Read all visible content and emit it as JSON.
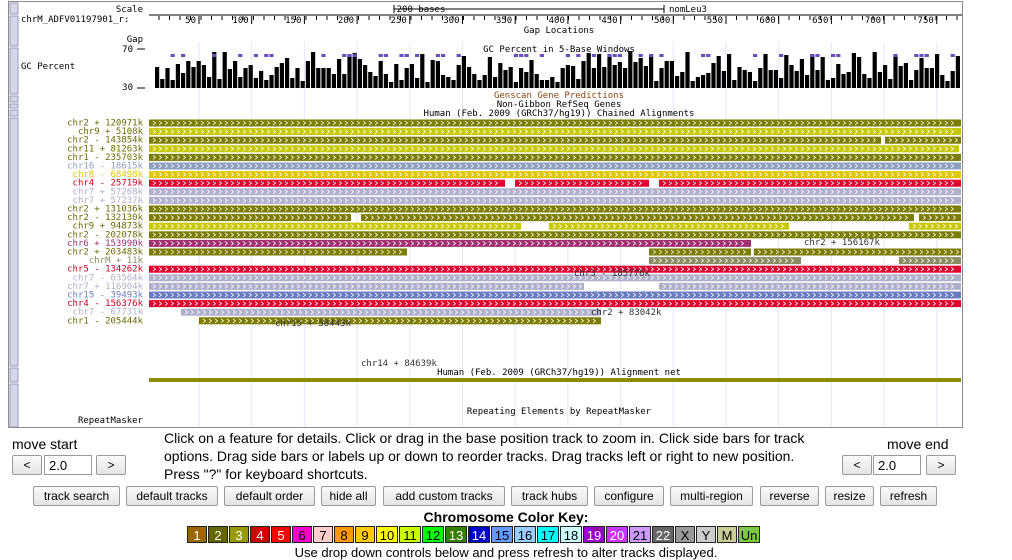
{
  "browser": {
    "scale_label": "Scale",
    "scale_text": "200 bases",
    "assembly_label": "nomLeu3",
    "position_label": "chrM_ADFV01197901_r:",
    "positions": [
      "50",
      "100",
      "150",
      "200",
      "250",
      "300",
      "350",
      "400",
      "450",
      "500",
      "550",
      "600",
      "650",
      "700",
      "750"
    ],
    "gap_label": "Gap",
    "gap_title": "Gap Locations",
    "gc_label": "GC Percent",
    "gc_title": "GC Percent in 5-Base Windows",
    "gc_max": "70",
    "gc_min": "30",
    "genscan_title": "Genscan Gene Predictions",
    "refseq_title": "Non-Gibbon RefSeq Genes",
    "chain_title": "Human (Feb. 2009 (GRCh37/hg19)) Chained Alignments",
    "net_title": "Human (Feb. 2009 (GRCh37/hg19)) Alignment net",
    "repeat_label": "RepeatMasker",
    "repeat_title": "Repeating Elements by RepeatMasker",
    "chain_rows": [
      {
        "label": "chr2 + 120971k",
        "color": "#7c7c00"
      },
      {
        "label": "chr9 + 5108k",
        "color": "#c8c800"
      },
      {
        "label": "chr2 - 143854k",
        "color": "#7c7c00"
      },
      {
        "label": "chr11 + 81263k",
        "color": "#c8c800"
      },
      {
        "label": "chr1 - 235703k",
        "color": "#7c7c00"
      },
      {
        "label": "chr16 - 18615k",
        "color": "#8ea0c0"
      },
      {
        "label": "chr8 - 68498k",
        "color": "#e0c800"
      },
      {
        "label": "chr4 - 25719k",
        "color": "#e00030"
      },
      {
        "label": "chr7 + 57268k",
        "color": "#b0b0cc"
      },
      {
        "label": "chr7 + 57237k",
        "color": "#b0b0cc"
      },
      {
        "label": "chr2 + 131036k",
        "color": "#7c7c00"
      },
      {
        "label": "chr2 - 132130k",
        "color": "#7c7c00"
      },
      {
        "label": "chr9 + 94873k",
        "color": "#c8c800"
      },
      {
        "label": "chr2 - 202078k",
        "color": "#7c7c00"
      },
      {
        "label": "chr6 + 153990k",
        "color": "#a03070"
      },
      {
        "label": "chr2 + 203483k",
        "color": "#7c7c00"
      },
      {
        "label": "chrM + 11k",
        "color": "#8c8c60"
      },
      {
        "label": "chr5 - 134262k",
        "color": "#e00030"
      },
      {
        "label": "chr7 - 63564k",
        "color": "#b0b0cc"
      },
      {
        "label": "chr7 + 116904k",
        "color": "#b0b0cc"
      },
      {
        "label": "chr15 - 39493k",
        "color": "#6a7cc0"
      },
      {
        "label": "chr4 - 156376k",
        "color": "#e00030"
      },
      {
        "label": "chr7 - 67731k",
        "color": "#b0b0cc"
      },
      {
        "label": "chr1 - 205444k",
        "color": "#7c7c00"
      }
    ],
    "inline_labels": [
      "chr2 + 156167k",
      "chr3 - 185776k",
      "chr2 + 83042k",
      "chr15 + 58443k",
      "chr14 + 84639k"
    ]
  },
  "nav": {
    "move_start_label": "move start",
    "move_end_label": "move end",
    "start_left": "<",
    "start_right": ">",
    "start_value": "2.0",
    "end_left": "<",
    "end_right": ">",
    "end_value": "2.0",
    "help_text": "Click on a feature for details. Click or drag in the base position track to zoom in. Click side bars for track options. Drag side bars or labels up or down to reorder tracks. Drag tracks left or right to new position. Press \"?\" for keyboard shortcuts."
  },
  "buttons": {
    "track_search": "track search",
    "default_tracks": "default tracks",
    "default_order": "default order",
    "hide_all": "hide all",
    "add_custom_tracks": "add custom tracks",
    "track_hubs": "track hubs",
    "configure": "configure",
    "multi_region": "multi-region",
    "reverse": "reverse",
    "resize": "resize",
    "refresh": "refresh"
  },
  "color_key": {
    "title": "Chromosome Color Key:",
    "items": [
      {
        "label": "1",
        "bg": "#996600",
        "fg": "#ffffff"
      },
      {
        "label": "2",
        "bg": "#666600",
        "fg": "#ffffff"
      },
      {
        "label": "3",
        "bg": "#999900",
        "fg": "#ffffff"
      },
      {
        "label": "4",
        "bg": "#cc0000",
        "fg": "#ffffff"
      },
      {
        "label": "5",
        "bg": "#ff0000",
        "fg": "#ffffff"
      },
      {
        "label": "6",
        "bg": "#ff00cc",
        "fg": "#000000"
      },
      {
        "label": "7",
        "bg": "#ffcccc",
        "fg": "#000000"
      },
      {
        "label": "8",
        "bg": "#ff9900",
        "fg": "#000000"
      },
      {
        "label": "9",
        "bg": "#ffcc00",
        "fg": "#000000"
      },
      {
        "label": "10",
        "bg": "#ffff00",
        "fg": "#000000"
      },
      {
        "label": "11",
        "bg": "#ccff00",
        "fg": "#000000"
      },
      {
        "label": "12",
        "bg": "#00ff00",
        "fg": "#000000"
      },
      {
        "label": "13",
        "bg": "#358000",
        "fg": "#ffffff"
      },
      {
        "label": "14",
        "bg": "#0000cc",
        "fg": "#ffffff"
      },
      {
        "label": "15",
        "bg": "#6699ff",
        "fg": "#000000"
      },
      {
        "label": "16",
        "bg": "#99ccff",
        "fg": "#000000"
      },
      {
        "label": "17",
        "bg": "#00ffff",
        "fg": "#000000"
      },
      {
        "label": "18",
        "bg": "#ccffff",
        "fg": "#000000"
      },
      {
        "label": "19",
        "bg": "#9900cc",
        "fg": "#ffffff"
      },
      {
        "label": "20",
        "bg": "#cc33ff",
        "fg": "#ffffff"
      },
      {
        "label": "21",
        "bg": "#cc99ff",
        "fg": "#000000"
      },
      {
        "label": "22",
        "bg": "#666666",
        "fg": "#ffffff"
      },
      {
        "label": "X",
        "bg": "#999999",
        "fg": "#000000"
      },
      {
        "label": "Y",
        "bg": "#cccccc",
        "fg": "#000000"
      },
      {
        "label": "M",
        "bg": "#cccc99",
        "fg": "#000000"
      },
      {
        "label": "Un",
        "bg": "#79cc3d",
        "fg": "#000000"
      }
    ]
  },
  "footer_text": "Use drop down controls below and press refresh to alter tracks displayed."
}
